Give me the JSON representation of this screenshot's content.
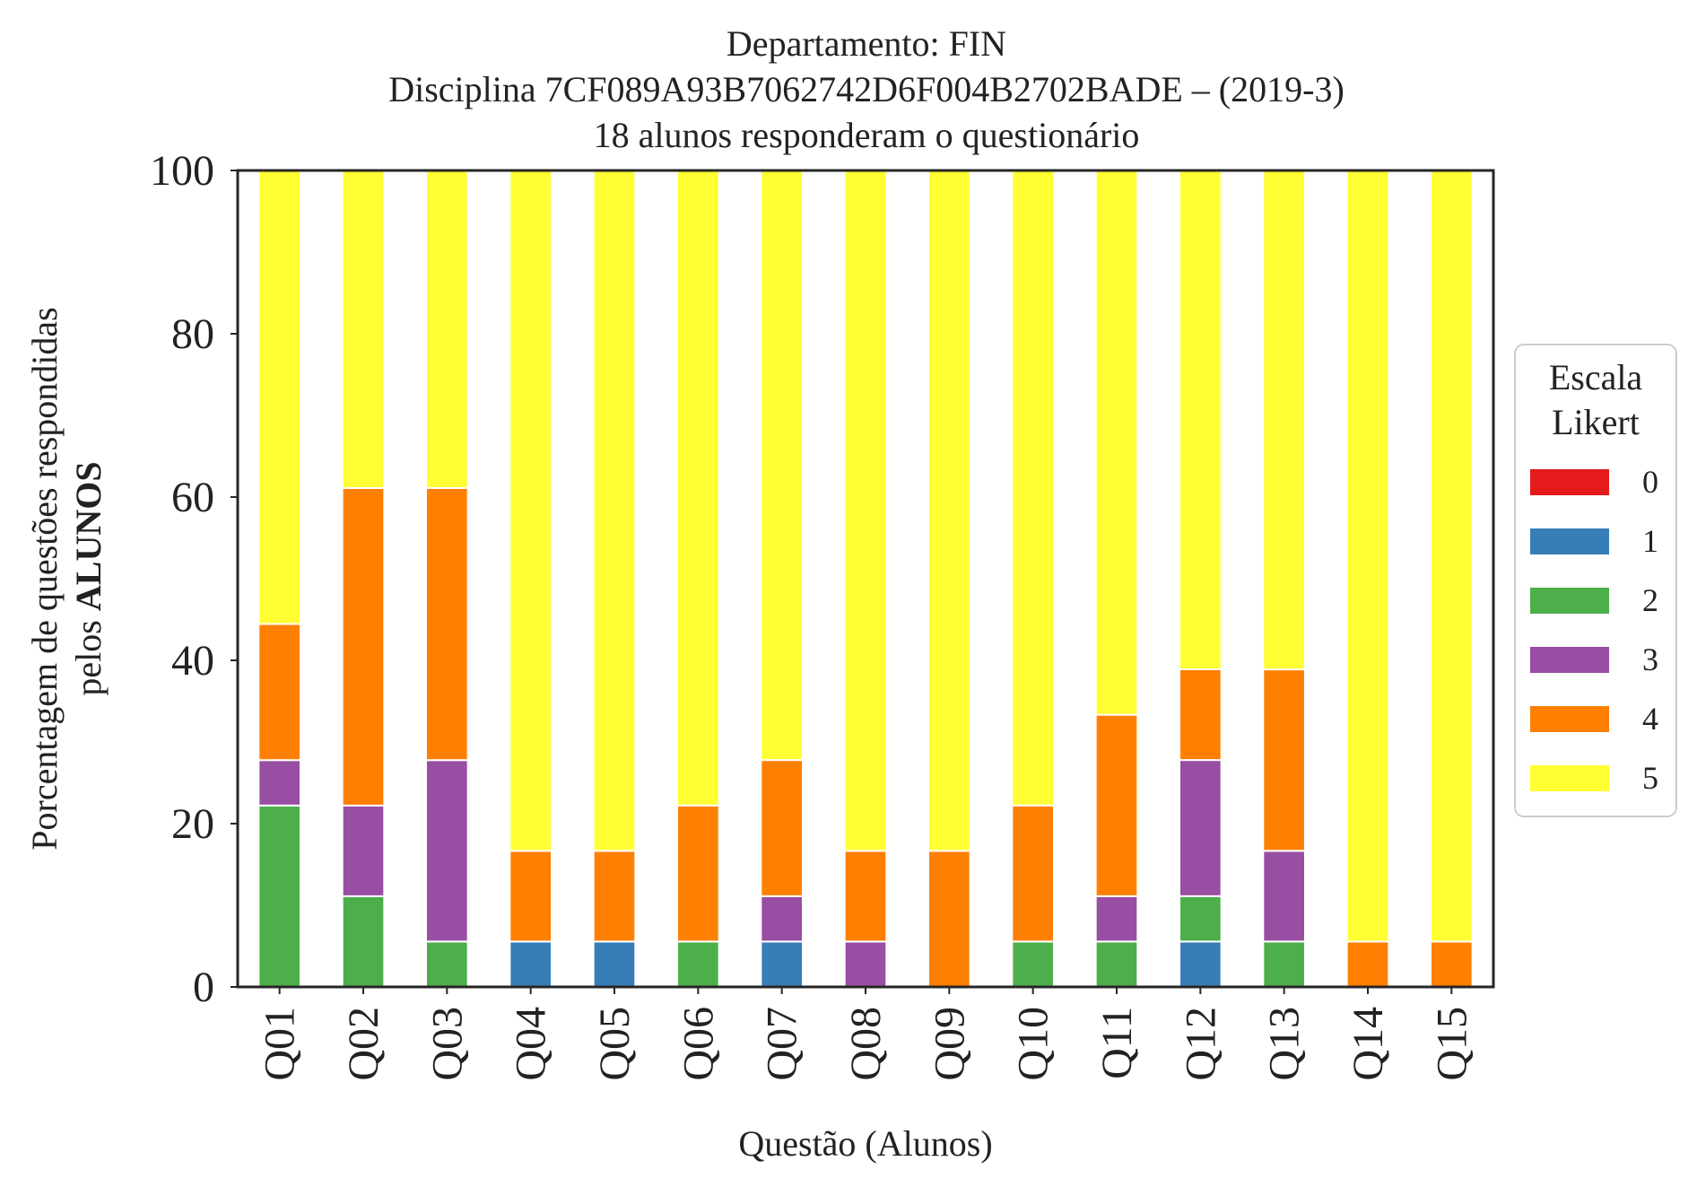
{
  "chart_data": {
    "type": "bar",
    "stacked": true,
    "title_lines": [
      "Departamento: FIN",
      "Disciplina 7CF089A93B7062742D6F004B2702BADE – (2019-3)",
      "18 alunos responderam o questionário"
    ],
    "xlabel": "Questão (Alunos)",
    "ylabel_line1": "Porcentagem de questões respondidas",
    "ylabel_line2_prefix": "pelos ",
    "ylabel_line2_bold": "ALUNOS",
    "ylim": [
      0,
      100
    ],
    "yticks": [
      0,
      20,
      40,
      60,
      80,
      100
    ],
    "grid": false,
    "legend": {
      "title_lines": [
        "Escala",
        "Likert"
      ],
      "placement": "right-center"
    },
    "categories": [
      "Q01",
      "Q02",
      "Q03",
      "Q04",
      "Q05",
      "Q06",
      "Q07",
      "Q08",
      "Q09",
      "Q10",
      "Q11",
      "Q12",
      "Q13",
      "Q14",
      "Q15"
    ],
    "series": [
      {
        "name": "0",
        "color": "#e41a1c",
        "values": [
          0,
          0,
          0,
          0,
          0,
          0,
          0,
          0,
          0,
          0,
          0,
          0,
          0,
          0,
          0
        ]
      },
      {
        "name": "1",
        "color": "#377eb8",
        "values": [
          0,
          0,
          0,
          5.56,
          5.56,
          0,
          5.56,
          0,
          0,
          0,
          0,
          5.56,
          0,
          0,
          0
        ]
      },
      {
        "name": "2",
        "color": "#4daf4a",
        "values": [
          22.22,
          11.11,
          5.56,
          0,
          0,
          5.56,
          0,
          0,
          0,
          5.56,
          5.56,
          5.56,
          5.56,
          0,
          0
        ]
      },
      {
        "name": "3",
        "color": "#984ea3",
        "values": [
          5.56,
          11.11,
          22.22,
          0,
          0,
          0,
          5.56,
          5.56,
          0,
          0,
          5.56,
          16.67,
          11.11,
          0,
          0
        ]
      },
      {
        "name": "4",
        "color": "#ff7f00",
        "values": [
          16.67,
          38.89,
          33.33,
          11.11,
          11.11,
          16.67,
          16.67,
          11.11,
          16.67,
          16.67,
          22.22,
          11.11,
          22.22,
          5.56,
          5.56
        ]
      },
      {
        "name": "5",
        "color": "#ffff33",
        "values": [
          55.56,
          38.89,
          38.89,
          83.33,
          83.33,
          77.78,
          72.22,
          83.33,
          83.33,
          77.78,
          66.67,
          61.11,
          61.11,
          94.44,
          94.44
        ]
      }
    ]
  }
}
